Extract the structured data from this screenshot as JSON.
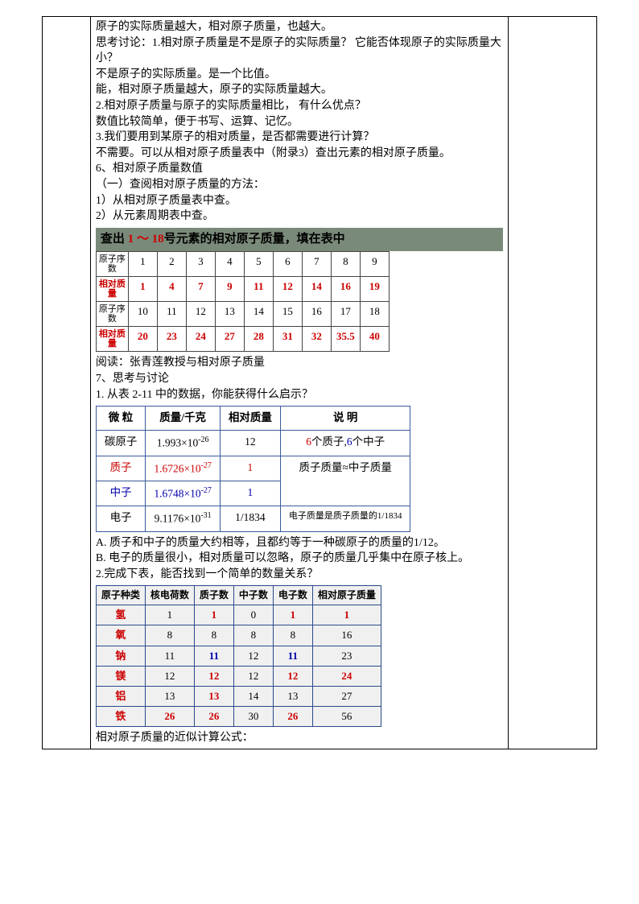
{
  "col1_blank": "",
  "col3_blank": "",
  "body": {
    "p1": "原子的实际质量越大，相对原子质量，也越大。",
    "p2": "思考讨论：1.相对原子质量是不是原子的实际质量？ 它能否体现原子的实际质量大小？",
    "p3": "不是原子的实际质量。是一个比值。",
    "p4": "能，相对原子质量越大，原子的实际质量越大。",
    "p5": "2.相对原子质量与原子的实际质量相比， 有什么优点？",
    "p6": "数值比较简单，便于书写、运算、记忆。",
    "p7": "3.我们要用到某原子的相对质量，是否都需要进行计算？",
    "p8": "不需要。可以从相对原子质量表中（附录3）查出元素的相对原子质量。",
    "p9": "6、相对原子质量数值",
    "p10": "（一）查阅相对原子质量的方法：",
    "p11": "1）从相对原子质量表中查。",
    "p12": "2）从元素周期表中查。"
  },
  "etab": {
    "title_a": "查出 ",
    "title_b": "1 ～ 18",
    "title_c": "号元素的相对原子质量，填在表中",
    "labels": {
      "seq": "原子序数",
      "mass": "相对质量"
    },
    "seq1": [
      "1",
      "2",
      "3",
      "4",
      "5",
      "6",
      "7",
      "8",
      "9"
    ],
    "mass1": [
      "1",
      "4",
      "7",
      "9",
      "11",
      "12",
      "14",
      "16",
      "19"
    ],
    "seq2": [
      "10",
      "11",
      "12",
      "13",
      "14",
      "15",
      "16",
      "17",
      "18"
    ],
    "mass2": [
      "20",
      "23",
      "24",
      "27",
      "28",
      "31",
      "32",
      "35.5",
      "40"
    ]
  },
  "mid": {
    "p1": "阅读：张青莲教授与相对原子质量",
    "p2": "7、思考与讨论",
    "p3": "1. 从表 2-11 中的数据，你能获得什么启示？"
  },
  "ptab": {
    "h1": "微 粒",
    "h2": "质量/千克",
    "h3": "相对质量",
    "h4": "说 明",
    "r1c1": "碳原子",
    "r1c2a": "1.993×10",
    "r1c2b": "-26",
    "r1c3": "12",
    "r1c4a": "6",
    "r1c4b": "个质子,",
    "r1c4c": "6",
    "r1c4d": "个中子",
    "r2c1": "质子",
    "r2c2a": "1.6726×10",
    "r2c2b": "-27",
    "r2c3": "1",
    "r3c1": "中子",
    "r3c2a": "1.6748×10",
    "r3c2b": "-27",
    "r3c3": "1",
    "r23note": "质子质量≈中子质量",
    "r4c1": "电子",
    "r4c2a": "9.1176×10",
    "r4c2b": "-31",
    "r4c3": "1/1834",
    "r4c4": "电子质量是质子质量的1/1834"
  },
  "after": {
    "pA": "A. 质子和中子的质量大约相等，且都约等于一种碳原子的质量的1/12。",
    "pB": "B. 电子的质量很小，相对质量可以忽略，原子的质量几乎集中在原子核上。",
    "p2": "2.完成下表，能否找到一个简单的数量关系？"
  },
  "atab": {
    "h": [
      "原子种类",
      "核电荷数",
      "质子数",
      "中子数",
      "电子数",
      "相对原子质量"
    ],
    "rows": [
      {
        "n": "氢",
        "a": "1",
        "p": "1",
        "z": "0",
        "e": "1",
        "m": "1"
      },
      {
        "n": "氧",
        "a": "8",
        "p": "8",
        "z": "8",
        "e": "8",
        "m": "16"
      },
      {
        "n": "钠",
        "a": "11",
        "p": "11",
        "z": "12",
        "e": "11",
        "m": "23"
      },
      {
        "n": "镁",
        "a": "12",
        "p": "12",
        "z": "12",
        "e": "12",
        "m": "24"
      },
      {
        "n": "铝",
        "a": "13",
        "p": "13",
        "z": "14",
        "e": "13",
        "m": "27"
      },
      {
        "n": "铁",
        "a": "26",
        "p": "26",
        "z": "30",
        "e": "26",
        "m": "56"
      }
    ]
  },
  "last": "相对原子质量的近似计算公式："
}
